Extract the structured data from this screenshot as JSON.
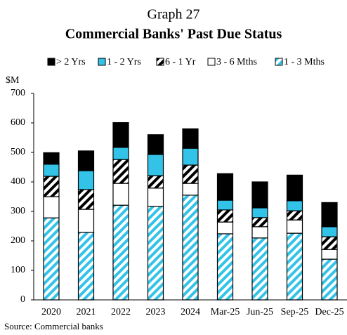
{
  "chart_data": {
    "type": "stacked_bar",
    "title": "Graph 27",
    "subtitle": "Commercial Banks' Past Due Status",
    "y_label": "$M",
    "source": "Source:  Commercial banks",
    "categories": [
      "2020",
      "2021",
      "2022",
      "2023",
      "2024",
      "Mar-25",
      "Jun-25",
      "Sep-25",
      "Dec-25"
    ],
    "series": [
      {
        "name": "1 - 3 Mths",
        "color": "#33c3e8",
        "pattern": "hatch",
        "values": [
          278,
          229,
          321,
          317,
          355,
          224,
          210,
          226,
          138
        ]
      },
      {
        "name": "3 - 6 Mths",
        "color": "#ffffff",
        "pattern": "solid",
        "values": [
          72,
          78,
          74,
          62,
          40,
          40,
          38,
          45,
          33
        ]
      },
      {
        "name": "6 - 1 Yr",
        "color": "#000000",
        "pattern": "hatch",
        "values": [
          69,
          67,
          81,
          42,
          62,
          41,
          31,
          31,
          43
        ]
      },
      {
        "name": "1 - 2 Yrs",
        "color": "#33c3e8",
        "pattern": "solid",
        "values": [
          41,
          64,
          41,
          72,
          57,
          33,
          33,
          34,
          34
        ]
      },
      {
        "name": "> 2 Yrs",
        "color": "#000000",
        "pattern": "solid",
        "values": [
          39,
          67,
          84,
          67,
          66,
          90,
          88,
          87,
          82
        ]
      }
    ],
    "ylim": [
      0,
      700
    ],
    "yticks": [
      0,
      100,
      200,
      300,
      400,
      500,
      600,
      700
    ],
    "grid": false
  }
}
